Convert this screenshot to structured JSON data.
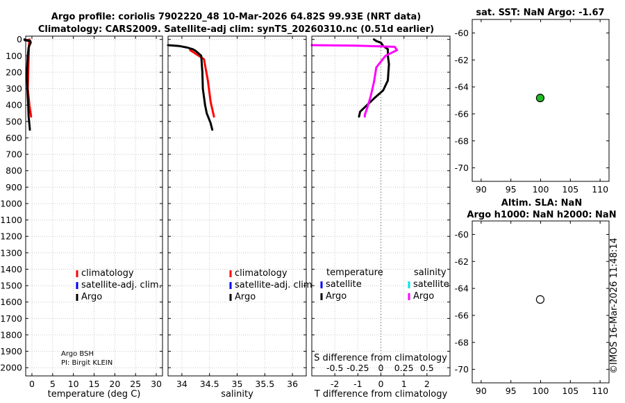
{
  "title_line1": "Argo profile: coriolis 7902220_48 10-Mar-2026 64.82S 99.93E (NRT data)",
  "title_line2": "Climatology: CARS2009. Satellite-adj clim: synTS_20260310.nc (0.51d earlier)",
  "credit": "©IMOS 16-Mar-2026 11:48:14",
  "colors": {
    "climatology": "#ff0000",
    "satellite_adj": "#0000ff",
    "argo": "#000000",
    "salinity_argo": "#ff00ff",
    "salinity_sat": "#00e5e5",
    "map_marker": "#22bb22",
    "grid": "#c8c8c8"
  },
  "chart_data": [
    {
      "id": "temperature",
      "type": "line",
      "xlabel": "temperature (deg C)",
      "ylabel": "",
      "xlim": [
        -1.5,
        31.5
      ],
      "ylim": [
        2050,
        0
      ],
      "xticks": [
        0,
        5,
        10,
        15,
        20,
        25,
        30
      ],
      "yticks": [
        0,
        100,
        200,
        300,
        400,
        500,
        600,
        700,
        800,
        900,
        1000,
        1100,
        1200,
        1300,
        1400,
        1500,
        1600,
        1700,
        1800,
        1900,
        2000
      ],
      "grid": true,
      "series": [
        {
          "name": "climatology",
          "color_key": "climatology",
          "x": [
            -0.6,
            -0.7,
            -1.0,
            -0.6,
            -0.2
          ],
          "y": [
            0,
            25,
            300,
            400,
            470
          ]
        },
        {
          "name": "Argo",
          "color_key": "argo",
          "x": [
            -1.8,
            -1.7,
            -0.4,
            -0.3,
            -0.5,
            -0.8,
            -1.0,
            -1.2,
            -1.1,
            -0.9,
            -0.8,
            -0.6,
            -0.5
          ],
          "y": [
            0,
            5,
            10,
            20,
            30,
            50,
            100,
            200,
            300,
            400,
            470,
            520,
            550
          ]
        }
      ],
      "legend": {
        "placement": "lower-middle",
        "items": [
          "climatology",
          "satellite-adj. clim.",
          "Argo"
        ]
      },
      "annotations": [
        "Argo BSH",
        "PI: Birgit KLEIN"
      ]
    },
    {
      "id": "salinity",
      "type": "line",
      "xlabel": "salinity",
      "ylabel": "",
      "xlim": [
        33.75,
        36.25
      ],
      "ylim": [
        2050,
        0
      ],
      "xticks": [
        34,
        34.5,
        35,
        35.5,
        36
      ],
      "xtick_labels": [
        "34",
        "34.5",
        "35",
        "35.5",
        "36"
      ],
      "grid": true,
      "series": [
        {
          "name": "climatology",
          "color_key": "climatology",
          "x": [
            34.15,
            34.4,
            34.47,
            34.52,
            34.58
          ],
          "y": [
            65,
            120,
            250,
            380,
            470
          ]
        },
        {
          "name": "Argo",
          "color_key": "argo",
          "x": [
            33.75,
            33.95,
            34.1,
            34.2,
            34.25,
            34.35,
            34.37,
            34.38,
            34.42,
            34.45,
            34.52,
            34.55
          ],
          "y": [
            35,
            40,
            50,
            60,
            70,
            100,
            200,
            300,
            400,
            450,
            510,
            550
          ]
        }
      ],
      "legend": {
        "placement": "lower-middle",
        "items": [
          "climatology",
          "satellite-adj. clim.",
          "Argo"
        ]
      }
    },
    {
      "id": "difference",
      "type": "line",
      "xlabel": "T difference from climatology",
      "xlabel_top": "S difference from climatology",
      "xlim": [
        -3,
        3
      ],
      "ylim": [
        2050,
        0
      ],
      "xticks": [
        -2,
        -1,
        0,
        1,
        2
      ],
      "xtick_labels": [
        "-2",
        "-1",
        "0",
        "1",
        "2"
      ],
      "s_tick_labels": [
        "-0.5",
        "-0.25",
        "0",
        "0.25",
        "0.5"
      ],
      "grid": true,
      "series": [
        {
          "name": "T Argo",
          "color_key": "argo",
          "x": [
            -0.3,
            -0.2,
            0.0,
            0.1,
            0.3,
            0.3,
            0.35,
            0.3,
            0.1,
            -0.3,
            -0.6,
            -0.9,
            -0.95
          ],
          "y": [
            0,
            10,
            20,
            40,
            60,
            100,
            150,
            250,
            310,
            360,
            400,
            440,
            470
          ]
        },
        {
          "name": "S Argo",
          "color_key": "salinity_argo",
          "x": [
            -3.0,
            -1.0,
            0.6,
            0.7,
            0.2,
            -0.2,
            -0.3,
            -0.45,
            -0.6,
            -0.7,
            -0.7
          ],
          "y": [
            35,
            38,
            45,
            65,
            100,
            170,
            260,
            350,
            420,
            460,
            470
          ]
        }
      ],
      "legend_temperature": {
        "header": "temperature",
        "items": [
          "satellite",
          "Argo"
        ]
      },
      "legend_salinity": {
        "header": "salinity",
        "items": [
          "satellite",
          "Argo"
        ]
      }
    },
    {
      "id": "map_sst",
      "type": "scatter",
      "title": "sat. SST: NaN Argo: -1.67",
      "xlim": [
        88.5,
        111.5
      ],
      "ylim": [
        -71,
        -59
      ],
      "xticks": [
        90,
        95,
        100,
        105,
        110
      ],
      "yticks": [
        -60,
        -62,
        -64,
        -66,
        -68,
        -70
      ],
      "points": [
        {
          "x": 99.93,
          "y": -64.82,
          "filled": true
        }
      ]
    },
    {
      "id": "map_sla",
      "type": "scatter",
      "title_line1": "Altim. SLA: NaN",
      "title_line2": "Argo h1000: NaN h2000: NaN",
      "xlim": [
        88.5,
        111.5
      ],
      "ylim": [
        -71,
        -59
      ],
      "xticks": [
        90,
        95,
        100,
        105,
        110
      ],
      "yticks": [
        -60,
        -62,
        -64,
        -66,
        -68,
        -70
      ],
      "points": [
        {
          "x": 99.93,
          "y": -64.82,
          "filled": false
        }
      ]
    }
  ]
}
